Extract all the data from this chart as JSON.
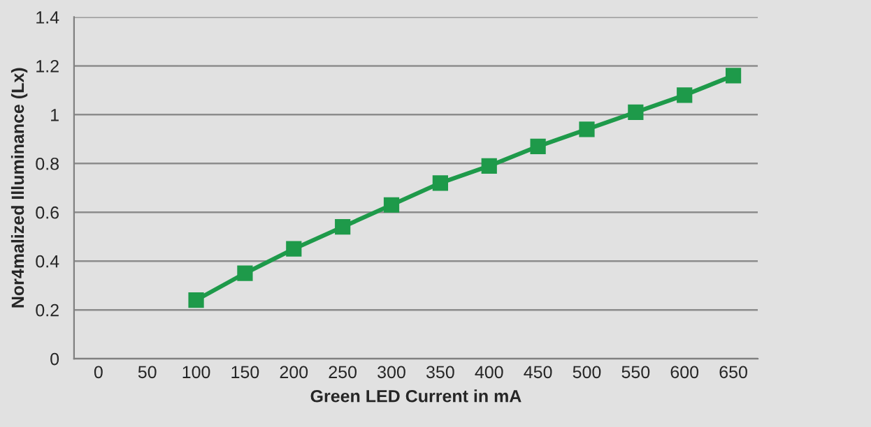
{
  "chart_data": {
    "type": "line",
    "xlabel": "Green LED Current in mA",
    "ylabel": "Nor4malized Illuminance (Lx)",
    "categories": [
      "0",
      "50",
      "100",
      "150",
      "200",
      "250",
      "300",
      "350",
      "400",
      "450",
      "500",
      "550",
      "600",
      "650"
    ],
    "series": [
      {
        "color": "#1e9a4a",
        "values": [
          null,
          null,
          0.24,
          0.35,
          0.45,
          0.54,
          0.63,
          0.72,
          0.79,
          0.87,
          0.94,
          1.01,
          1.08,
          1.16
        ]
      }
    ],
    "ylim": [
      0,
      1.4
    ],
    "yticks": [
      0,
      0.2,
      0.4,
      0.6,
      0.8,
      1,
      1.2,
      1.4
    ],
    "grid": "y",
    "marker": "square",
    "line_style": "solid",
    "legend": false
  }
}
